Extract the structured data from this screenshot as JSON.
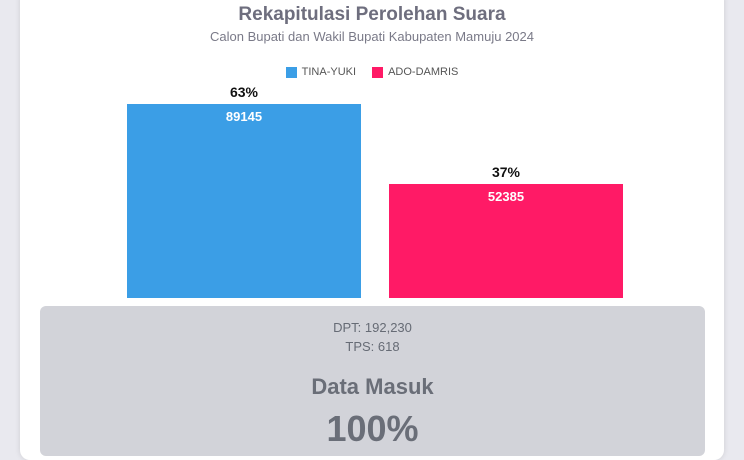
{
  "header": {
    "title": "Rekapitulasi Perolehan Suara",
    "subtitle": "Calon Bupati dan Wakil Bupati Kabupaten Mamuju 2024"
  },
  "chart_data": {
    "type": "bar",
    "title": "Rekapitulasi Perolehan Suara",
    "subtitle": "Calon Bupati dan Wakil Bupati Kabupaten Mamuju 2024",
    "categories": [
      "TINA-YUKI",
      "ADO-DAMRIS"
    ],
    "values": [
      89145,
      52385
    ],
    "percent_labels": [
      "63%",
      "37%"
    ],
    "colors": [
      "#3b9ee6",
      "#ff1a66"
    ],
    "legend": {
      "position": "top",
      "entries": [
        "TINA-YUKI",
        "ADO-DAMRIS"
      ]
    },
    "ylim": [
      0,
      100000
    ],
    "grid": false
  },
  "stats": {
    "dpt": "DPT: 192,230",
    "tps": "TPS: 618",
    "data_masuk_label": "Data Masuk",
    "data_masuk_value": "100%"
  }
}
